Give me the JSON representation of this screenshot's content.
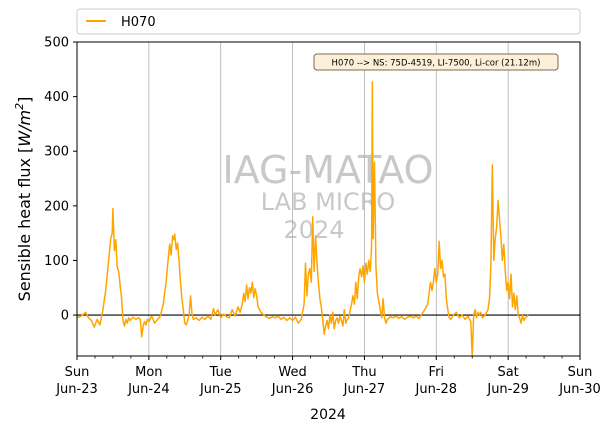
{
  "chart_data": {
    "type": "line",
    "title": "",
    "xlabel": "2024",
    "ylabel": "Sensible heat flux [W/m²]",
    "ylabel_parts": {
      "prefix": "Sensible heat flux [",
      "unit_base": "W/m",
      "unit_exp": "2",
      "suffix": "]"
    },
    "ylim": [
      -75,
      500
    ],
    "yticks": [
      0,
      100,
      200,
      300,
      400,
      500
    ],
    "xlim": [
      "2024-06-23",
      "2024-06-30"
    ],
    "xticks": [
      {
        "day": "Sun",
        "date": "Jun-23"
      },
      {
        "day": "Mon",
        "date": "Jun-24"
      },
      {
        "day": "Tue",
        "date": "Jun-25"
      },
      {
        "day": "Wed",
        "date": "Jun-26"
      },
      {
        "day": "Thu",
        "date": "Jun-27"
      },
      {
        "day": "Fri",
        "date": "Jun-28"
      },
      {
        "day": "Sat",
        "date": "Jun-29"
      },
      {
        "day": "Sun",
        "date": "Jun-30"
      }
    ],
    "grid": "vertical at day boundaries",
    "zero_line": true,
    "legend": {
      "placement": "top, above plot",
      "entries": [
        "H070"
      ]
    },
    "annotation": "H070 --> NS: 75D-4519, LI-7500, Li-cor (21.12m)",
    "watermark": [
      "IAG-MATAO",
      "LAB MICRO",
      "2024"
    ],
    "series": [
      {
        "name": "H070",
        "color": "#ffa500",
        "x_unit": "days since 2024-06-23 00:00",
        "points": [
          [
            0.0,
            -5
          ],
          [
            0.04,
            -3
          ],
          [
            0.08,
            0
          ],
          [
            0.12,
            5
          ],
          [
            0.16,
            -5
          ],
          [
            0.2,
            -10
          ],
          [
            0.24,
            -22
          ],
          [
            0.28,
            -8
          ],
          [
            0.32,
            -18
          ],
          [
            0.36,
            10
          ],
          [
            0.4,
            45
          ],
          [
            0.44,
            100
          ],
          [
            0.47,
            140
          ],
          [
            0.49,
            150
          ],
          [
            0.5,
            195
          ],
          [
            0.52,
            118
          ],
          [
            0.54,
            138
          ],
          [
            0.56,
            88
          ],
          [
            0.58,
            80
          ],
          [
            0.6,
            55
          ],
          [
            0.62,
            30
          ],
          [
            0.64,
            -10
          ],
          [
            0.66,
            -20
          ],
          [
            0.68,
            -8
          ],
          [
            0.7,
            -15
          ],
          [
            0.72,
            -5
          ],
          [
            0.74,
            -10
          ],
          [
            0.78,
            -4
          ],
          [
            0.82,
            -8
          ],
          [
            0.86,
            -5
          ],
          [
            0.88,
            -8
          ],
          [
            0.9,
            -40
          ],
          [
            0.92,
            -20
          ],
          [
            0.94,
            -12
          ],
          [
            0.96,
            -18
          ],
          [
            0.98,
            -8
          ],
          [
            1.0,
            -12
          ],
          [
            1.04,
            -2
          ],
          [
            1.08,
            -15
          ],
          [
            1.12,
            -8
          ],
          [
            1.16,
            -2
          ],
          [
            1.2,
            20
          ],
          [
            1.24,
            60
          ],
          [
            1.27,
            105
          ],
          [
            1.29,
            130
          ],
          [
            1.31,
            110
          ],
          [
            1.33,
            145
          ],
          [
            1.35,
            138
          ],
          [
            1.36,
            148
          ],
          [
            1.38,
            120
          ],
          [
            1.4,
            132
          ],
          [
            1.42,
            100
          ],
          [
            1.44,
            60
          ],
          [
            1.46,
            30
          ],
          [
            1.48,
            10
          ],
          [
            1.5,
            -15
          ],
          [
            1.52,
            -18
          ],
          [
            1.54,
            -10
          ],
          [
            1.56,
            0
          ],
          [
            1.58,
            35
          ],
          [
            1.6,
            2
          ],
          [
            1.62,
            -8
          ],
          [
            1.66,
            -5
          ],
          [
            1.7,
            -10
          ],
          [
            1.74,
            -4
          ],
          [
            1.78,
            -8
          ],
          [
            1.82,
            -2
          ],
          [
            1.86,
            -8
          ],
          [
            1.9,
            12
          ],
          [
            1.92,
            0
          ],
          [
            1.96,
            10
          ],
          [
            2.0,
            -5
          ],
          [
            2.04,
            2
          ],
          [
            2.08,
            -3
          ],
          [
            2.12,
            -5
          ],
          [
            2.16,
            10
          ],
          [
            2.2,
            -2
          ],
          [
            2.24,
            15
          ],
          [
            2.27,
            5
          ],
          [
            2.3,
            20
          ],
          [
            2.32,
            40
          ],
          [
            2.34,
            25
          ],
          [
            2.36,
            55
          ],
          [
            2.38,
            30
          ],
          [
            2.4,
            50
          ],
          [
            2.42,
            40
          ],
          [
            2.44,
            60
          ],
          [
            2.46,
            32
          ],
          [
            2.48,
            48
          ],
          [
            2.5,
            35
          ],
          [
            2.52,
            15
          ],
          [
            2.56,
            5
          ],
          [
            2.6,
            0
          ],
          [
            2.64,
            -4
          ],
          [
            2.68,
            -6
          ],
          [
            2.72,
            -3
          ],
          [
            2.76,
            -5
          ],
          [
            2.8,
            -2
          ],
          [
            2.84,
            -8
          ],
          [
            2.88,
            -4
          ],
          [
            2.92,
            -10
          ],
          [
            2.96,
            -5
          ],
          [
            3.0,
            -10
          ],
          [
            3.04,
            -4
          ],
          [
            3.08,
            -15
          ],
          [
            3.12,
            -8
          ],
          [
            3.16,
            20
          ],
          [
            3.18,
            95
          ],
          [
            3.2,
            35
          ],
          [
            3.22,
            75
          ],
          [
            3.24,
            85
          ],
          [
            3.26,
            60
          ],
          [
            3.28,
            180
          ],
          [
            3.3,
            80
          ],
          [
            3.32,
            145
          ],
          [
            3.34,
            95
          ],
          [
            3.36,
            60
          ],
          [
            3.38,
            30
          ],
          [
            3.4,
            15
          ],
          [
            3.42,
            -10
          ],
          [
            3.44,
            -35
          ],
          [
            3.46,
            -20
          ],
          [
            3.48,
            -10
          ],
          [
            3.5,
            -25
          ],
          [
            3.52,
            0
          ],
          [
            3.54,
            -15
          ],
          [
            3.56,
            5
          ],
          [
            3.58,
            -25
          ],
          [
            3.6,
            -10
          ],
          [
            3.62,
            -5
          ],
          [
            3.64,
            -15
          ],
          [
            3.66,
            -2
          ],
          [
            3.68,
            -10
          ],
          [
            3.7,
            -20
          ],
          [
            3.72,
            10
          ],
          [
            3.74,
            -15
          ],
          [
            3.76,
            -8
          ],
          [
            3.78,
            -5
          ],
          [
            3.82,
            20
          ],
          [
            3.84,
            35
          ],
          [
            3.86,
            20
          ],
          [
            3.88,
            60
          ],
          [
            3.9,
            30
          ],
          [
            3.92,
            70
          ],
          [
            3.94,
            85
          ],
          [
            3.96,
            70
          ],
          [
            3.98,
            90
          ],
          [
            4.0,
            60
          ],
          [
            4.02,
            95
          ],
          [
            4.04,
            75
          ],
          [
            4.06,
            100
          ],
          [
            4.08,
            80
          ],
          [
            4.1,
            125
          ],
          [
            4.11,
            427
          ],
          [
            4.12,
            140
          ],
          [
            4.14,
            280
          ],
          [
            4.16,
            90
          ],
          [
            4.18,
            40
          ],
          [
            4.2,
            25
          ],
          [
            4.22,
            10
          ],
          [
            4.24,
            -5
          ],
          [
            4.26,
            30
          ],
          [
            4.28,
            -5
          ],
          [
            4.3,
            -15
          ],
          [
            4.32,
            -8
          ],
          [
            4.36,
            -3
          ],
          [
            4.4,
            -5
          ],
          [
            4.44,
            -2
          ],
          [
            4.48,
            -6
          ],
          [
            4.52,
            -3
          ],
          [
            4.56,
            -8
          ],
          [
            4.6,
            -4
          ],
          [
            4.64,
            -2
          ],
          [
            4.68,
            -5
          ],
          [
            4.72,
            -2
          ],
          [
            4.76,
            -6
          ],
          [
            4.8,
            2
          ],
          [
            4.84,
            10
          ],
          [
            4.88,
            20
          ],
          [
            4.9,
            40
          ],
          [
            4.92,
            60
          ],
          [
            4.94,
            45
          ],
          [
            4.96,
            60
          ],
          [
            4.98,
            85
          ],
          [
            5.0,
            60
          ],
          [
            5.02,
            75
          ],
          [
            5.04,
            135
          ],
          [
            5.06,
            85
          ],
          [
            5.08,
            100
          ],
          [
            5.1,
            70
          ],
          [
            5.12,
            75
          ],
          [
            5.14,
            30
          ],
          [
            5.16,
            10
          ],
          [
            5.18,
            -5
          ],
          [
            5.2,
            -8
          ],
          [
            5.24,
            0
          ],
          [
            5.28,
            5
          ],
          [
            5.32,
            -5
          ],
          [
            5.36,
            0
          ],
          [
            5.4,
            -8
          ],
          [
            5.44,
            -2
          ],
          [
            5.48,
            -12
          ],
          [
            5.5,
            -75
          ],
          [
            5.52,
            0
          ],
          [
            5.54,
            10
          ],
          [
            5.56,
            -5
          ],
          [
            5.58,
            5
          ],
          [
            5.6,
            0
          ],
          [
            5.62,
            5
          ],
          [
            5.64,
            -5
          ],
          [
            5.68,
            0
          ],
          [
            5.72,
            10
          ],
          [
            5.74,
            30
          ],
          [
            5.76,
            90
          ],
          [
            5.78,
            275
          ],
          [
            5.8,
            100
          ],
          [
            5.82,
            140
          ],
          [
            5.84,
            160
          ],
          [
            5.86,
            210
          ],
          [
            5.88,
            175
          ],
          [
            5.9,
            140
          ],
          [
            5.92,
            100
          ],
          [
            5.94,
            130
          ],
          [
            5.96,
            80
          ],
          [
            5.98,
            45
          ],
          [
            6.0,
            60
          ],
          [
            6.02,
            30
          ],
          [
            6.04,
            75
          ],
          [
            6.06,
            15
          ],
          [
            6.08,
            40
          ],
          [
            6.1,
            10
          ],
          [
            6.12,
            35
          ],
          [
            6.14,
            0
          ],
          [
            6.16,
            -5
          ],
          [
            6.18,
            -15
          ],
          [
            6.2,
            0
          ],
          [
            6.22,
            -10
          ],
          [
            6.24,
            -5
          ],
          [
            6.28,
            0
          ]
        ]
      }
    ]
  }
}
